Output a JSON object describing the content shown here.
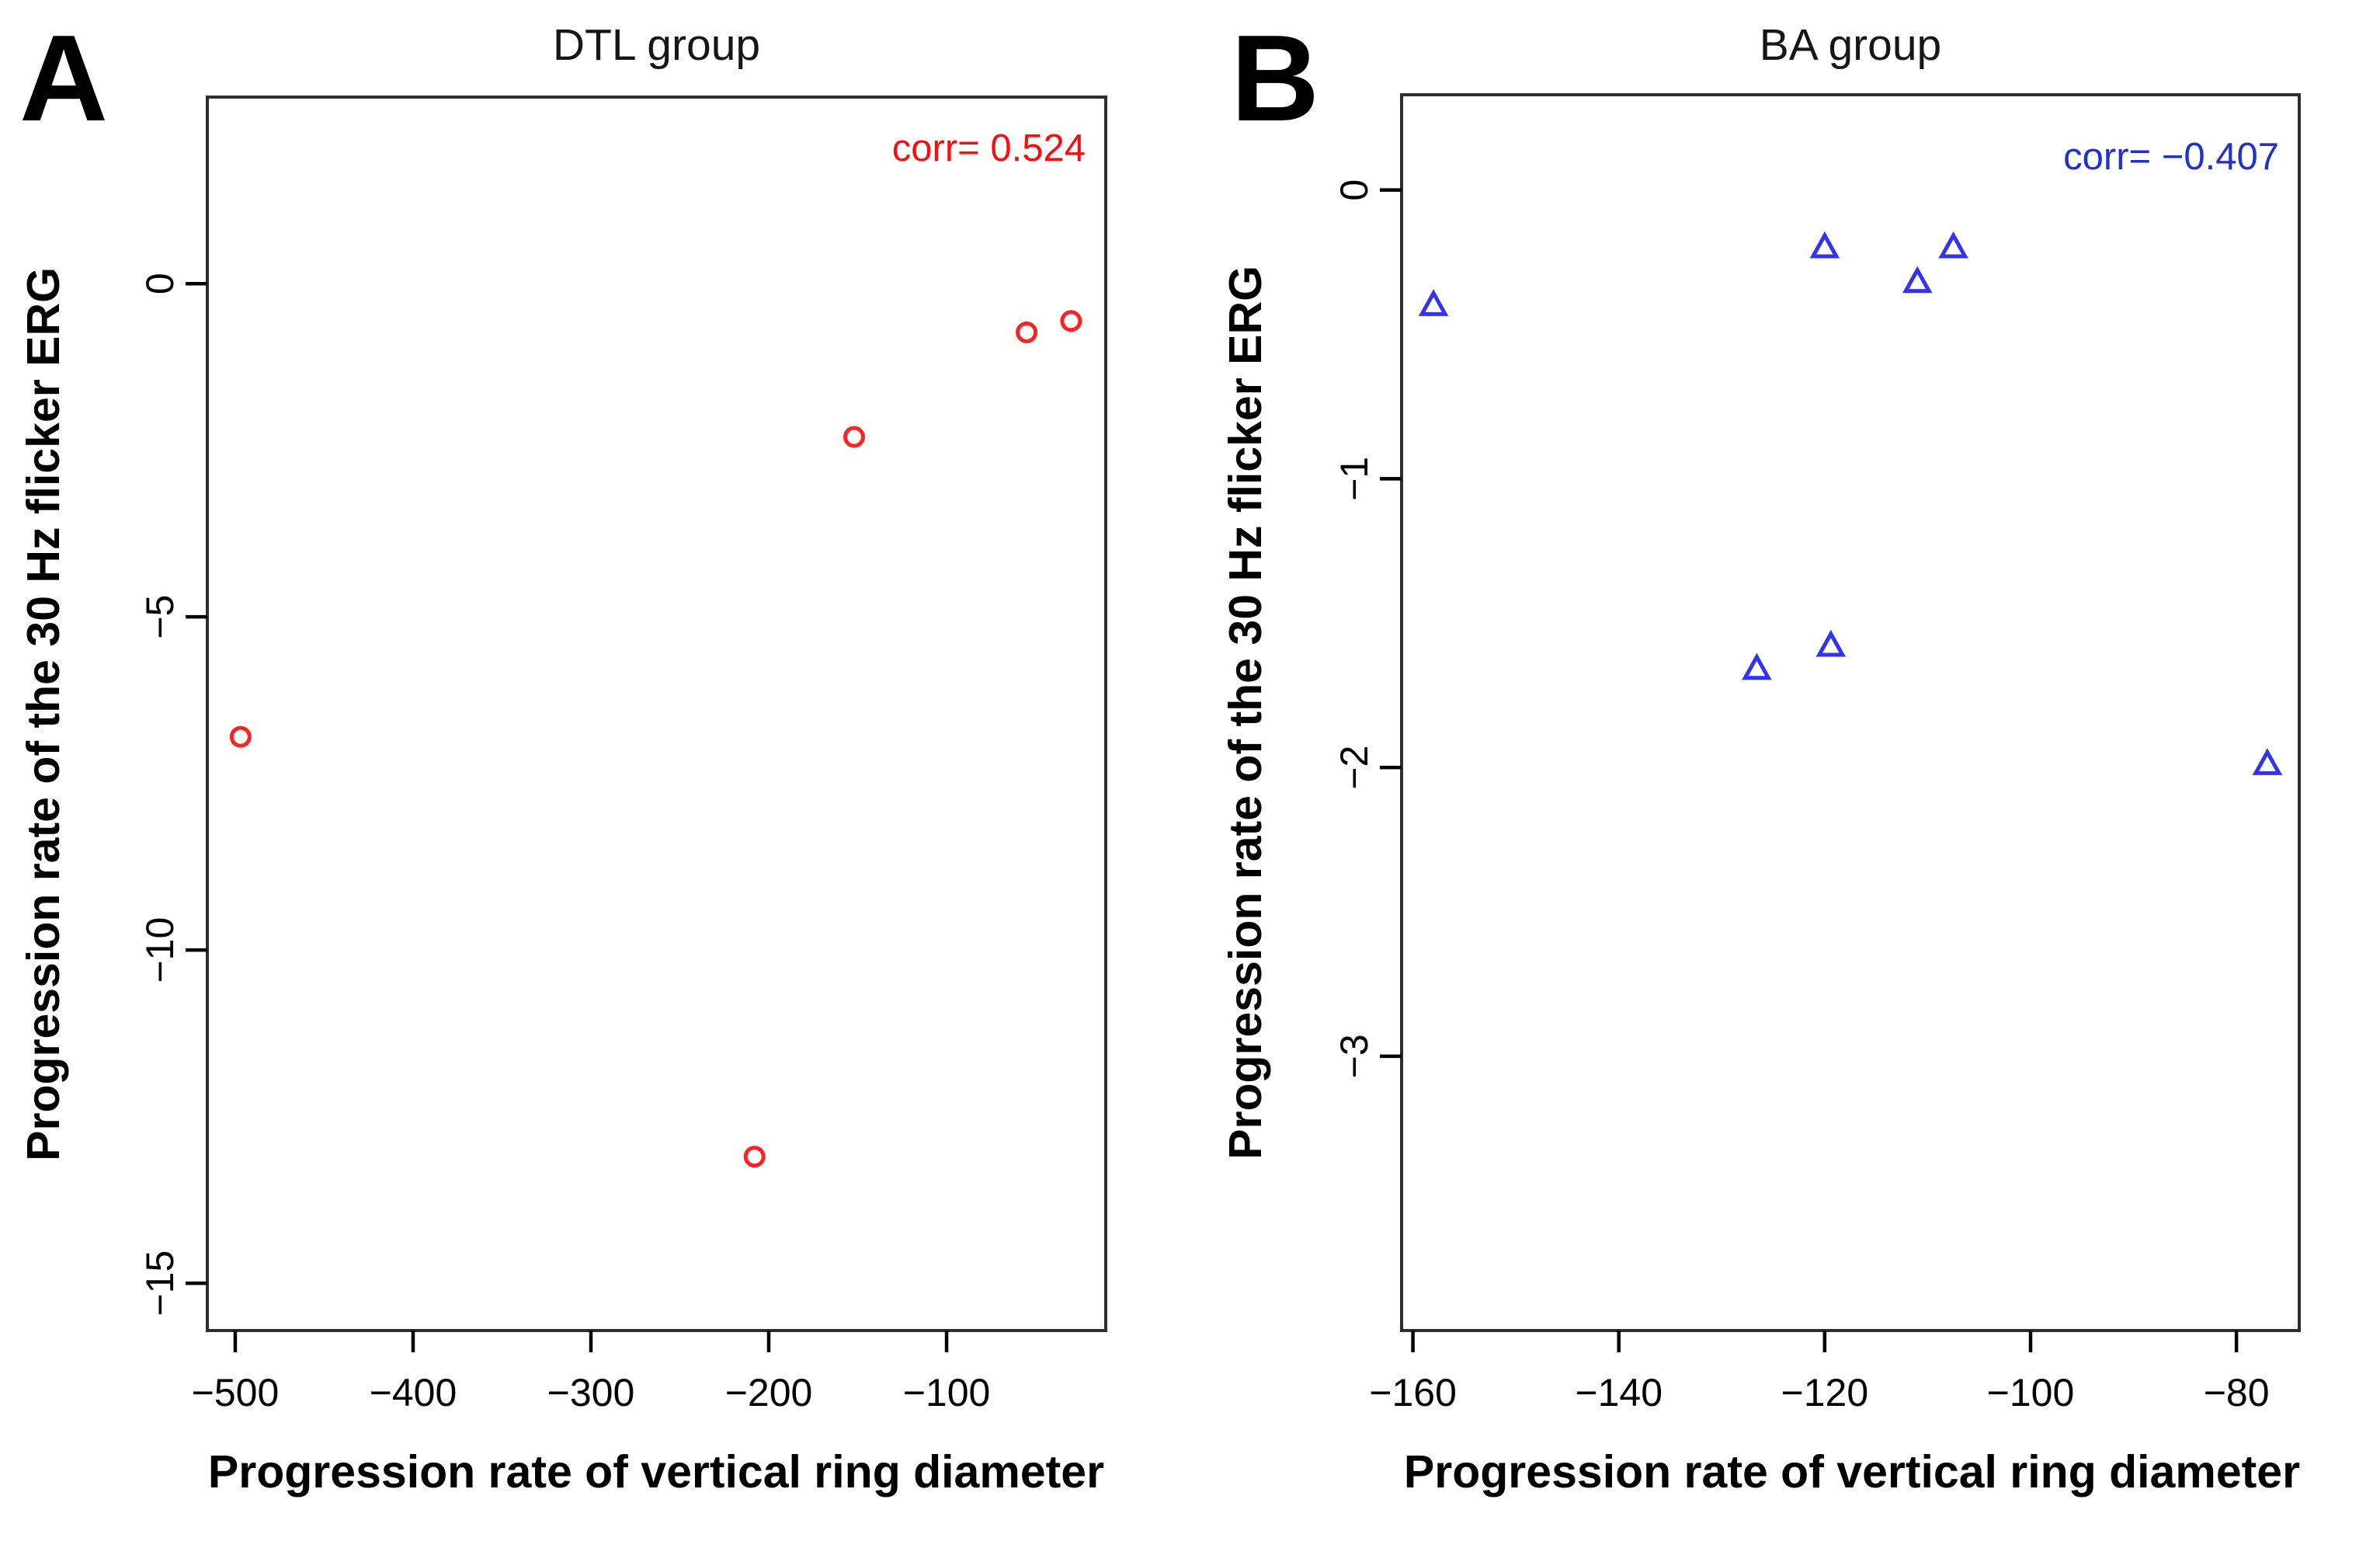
{
  "page": {
    "background": "#ffffff"
  },
  "chart_data": [
    {
      "type": "scatter",
      "panel_label": "A",
      "title": "DTL group",
      "xlabel": "Progression rate of vertical ring diameter",
      "ylabel": "Progression rate of the 30 Hz flicker ERG",
      "annotation": "corr= 0.524",
      "annotation_color": "#fb0d0d",
      "marker": "circle",
      "marker_color": "#ff2222",
      "axis_color": "#2e2e2e",
      "grid": false,
      "legend": null,
      "xlim": [
        -515.7,
        -10.5
      ],
      "ylim": [
        -15.71,
        2.8
      ],
      "x_ticks": [
        {
          "v": -500,
          "label": "−500"
        },
        {
          "v": -400,
          "label": "−400"
        },
        {
          "v": -300,
          "label": "−300"
        },
        {
          "v": -200,
          "label": "−200"
        },
        {
          "v": -100,
          "label": "−100"
        }
      ],
      "y_ticks": [
        {
          "v": 0,
          "label": "0"
        },
        {
          "v": -5,
          "label": "−5"
        },
        {
          "v": -10,
          "label": "−10"
        },
        {
          "v": -15,
          "label": "−15"
        }
      ],
      "points": [
        {
          "x": -497,
          "y": -6.8
        },
        {
          "x": -208,
          "y": -13.1
        },
        {
          "x": -152,
          "y": -2.3
        },
        {
          "x": -55,
          "y": -0.73
        },
        {
          "x": -30,
          "y": -0.56
        }
      ]
    },
    {
      "type": "scatter",
      "panel_label": "B",
      "title": "BA group",
      "xlabel": "Progression rate of vertical ring diameter",
      "ylabel": "Progression rate of the 30 Hz flicker ERG",
      "annotation": "corr= −0.407",
      "annotation_color": "#2230cc",
      "marker": "triangle",
      "marker_color": "#3333ee",
      "axis_color": "#2e2e2e",
      "grid": false,
      "legend": null,
      "xlim": [
        -161.1,
        -73.9
      ],
      "ylim": [
        -3.95,
        0.33
      ],
      "x_ticks": [
        {
          "v": -160,
          "label": "−160"
        },
        {
          "v": -140,
          "label": "−140"
        },
        {
          "v": -120,
          "label": "−120"
        },
        {
          "v": -100,
          "label": "−100"
        },
        {
          "v": -80,
          "label": "−80"
        }
      ],
      "y_ticks": [
        {
          "v": 0,
          "label": "0"
        },
        {
          "v": -1,
          "label": "−1"
        },
        {
          "v": -2,
          "label": "−2"
        },
        {
          "v": -3,
          "label": "−3"
        }
      ],
      "points": [
        {
          "x": -158,
          "y": -0.4
        },
        {
          "x": -120,
          "y": -0.2
        },
        {
          "x": -111,
          "y": -0.32
        },
        {
          "x": -107.5,
          "y": -0.2
        },
        {
          "x": -126.6,
          "y": -1.66
        },
        {
          "x": -119.4,
          "y": -1.58
        },
        {
          "x": -77,
          "y": -1.99
        }
      ]
    }
  ]
}
